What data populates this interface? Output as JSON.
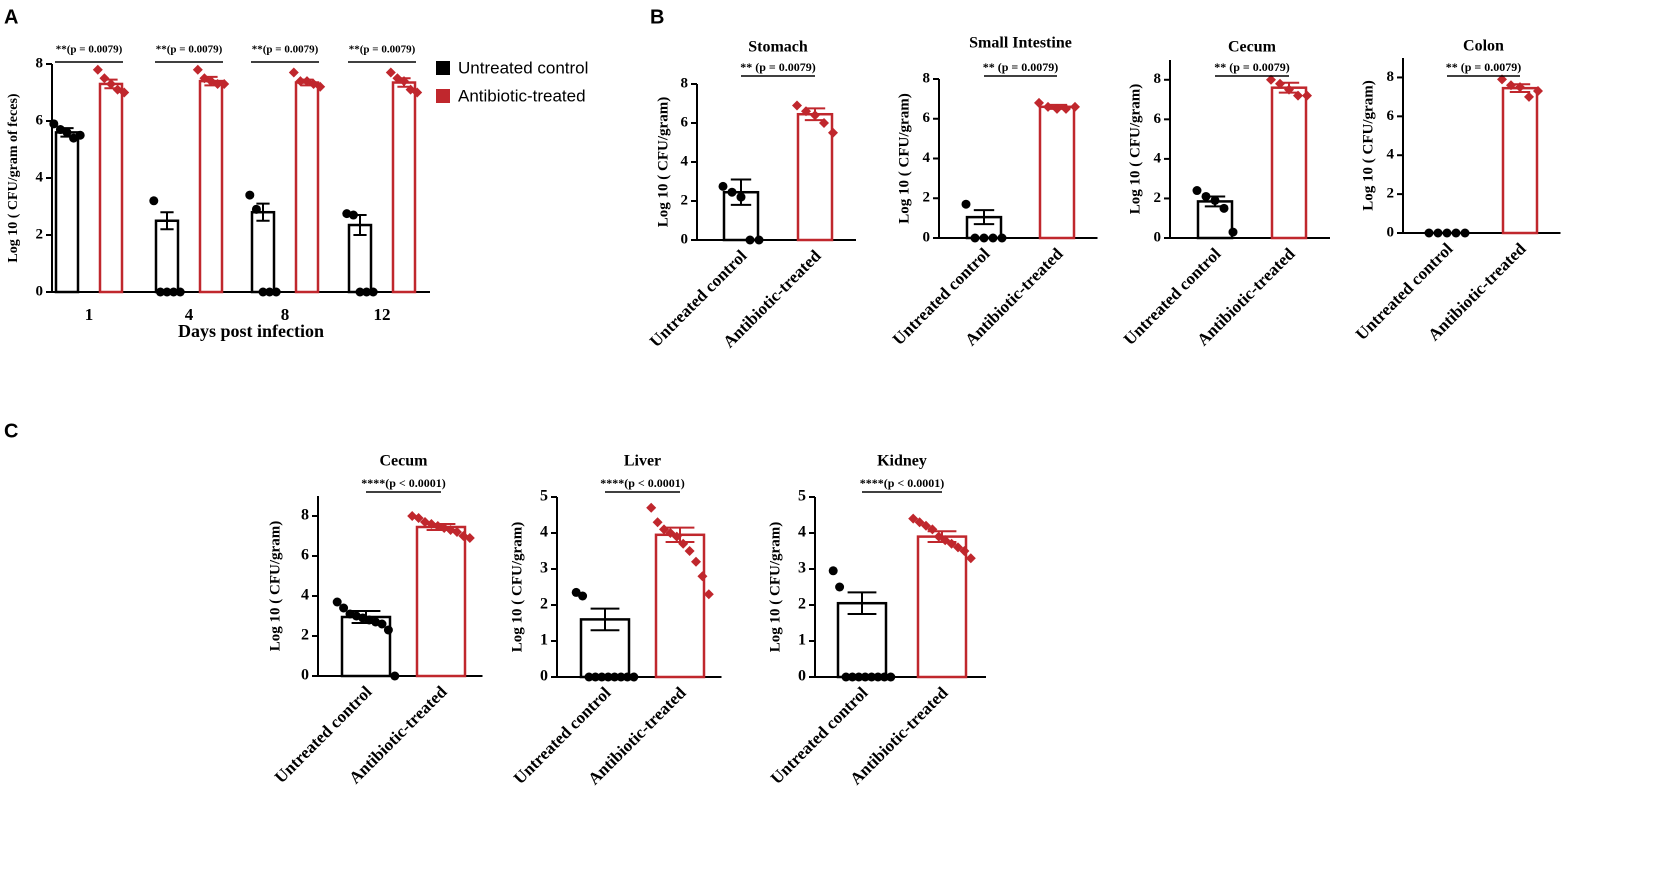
{
  "panel_labels": [
    "A",
    "B",
    "C"
  ],
  "chart_data": [
    {
      "type": "bar",
      "ylabel": "Log 10 ( CFU/gram of feces)",
      "xlabel": "Days post infection",
      "categories": [
        "1",
        "4",
        "8",
        "12"
      ],
      "ylim": [
        0,
        8
      ],
      "yticks": [
        0,
        2,
        4,
        6,
        8
      ],
      "annotations": [
        "**(p = 0.0079)",
        "**(p = 0.0079)",
        "**(p = 0.0079)",
        "**(p = 0.0079)"
      ],
      "series": [
        {
          "name": "Untreated control",
          "color": "#000000",
          "values": [
            5.6,
            2.5,
            2.8,
            2.35
          ],
          "errors": [
            0.15,
            0.3,
            0.3,
            0.35
          ],
          "points": [
            [
              5.9,
              5.7,
              5.6,
              5.4,
              5.5
            ],
            [
              3.2,
              0,
              0,
              0,
              0
            ],
            [
              3.4,
              2.9,
              0,
              0,
              0
            ],
            [
              2.75,
              2.7,
              0,
              0,
              0
            ]
          ]
        },
        {
          "name": "Antibiotic-treated",
          "color": "#c0272d",
          "values": [
            7.3,
            7.4,
            7.35,
            7.35
          ],
          "errors": [
            0.15,
            0.15,
            0.1,
            0.15
          ],
          "points": [
            [
              7.8,
              7.5,
              7.3,
              7.1,
              7.0
            ],
            [
              7.8,
              7.5,
              7.4,
              7.3,
              7.3
            ],
            [
              7.7,
              7.4,
              7.4,
              7.3,
              7.2
            ],
            [
              7.7,
              7.5,
              7.4,
              7.1,
              7.0
            ]
          ]
        }
      ]
    },
    {
      "type": "bar",
      "title": "Stomach",
      "ylabel": "Log 10 ( CFU/gram)",
      "annotation": "** (p = 0.0079)",
      "categories": [
        "Untreated control",
        "Antibiotic-treated"
      ],
      "colors": [
        "#000000",
        "#c0272d"
      ],
      "ylim": [
        0,
        8
      ],
      "yticks": [
        0,
        2,
        4,
        6,
        8
      ],
      "values": [
        2.45,
        6.45
      ],
      "errors": [
        0.65,
        0.3
      ],
      "points": [
        [
          2.75,
          2.45,
          2.2,
          0,
          0
        ],
        [
          6.9,
          6.6,
          6.4,
          6.0,
          5.5
        ]
      ]
    },
    {
      "type": "bar",
      "title": "Small Intestine",
      "ylabel": "Log 10 ( CFU/gram)",
      "annotation": "** (p = 0.0079)",
      "categories": [
        "Untreated control",
        "Antibiotic-treated"
      ],
      "colors": [
        "#000000",
        "#c0272d"
      ],
      "ylim": [
        0,
        8
      ],
      "yticks": [
        0,
        2,
        4,
        6,
        8
      ],
      "values": [
        1.05,
        6.6
      ],
      "errors": [
        0.35,
        0.1
      ],
      "points": [
        [
          1.7,
          0,
          0,
          0,
          0
        ],
        [
          6.8,
          6.6,
          6.5,
          6.5,
          6.6
        ]
      ]
    },
    {
      "type": "bar",
      "title": "Cecum",
      "ylabel": "Log 10 ( CFU/gram)",
      "annotation": "** (p = 0.0079)",
      "categories": [
        "Untreated control",
        "Antibiotic-treated"
      ],
      "colors": [
        "#000000",
        "#c0272d"
      ],
      "ylim": [
        0,
        9
      ],
      "yticks": [
        0,
        2,
        4,
        6,
        8
      ],
      "values": [
        1.85,
        7.6
      ],
      "errors": [
        0.25,
        0.25
      ],
      "points": [
        [
          2.4,
          2.1,
          1.9,
          1.5,
          0.3
        ],
        [
          8.0,
          7.8,
          7.5,
          7.2,
          7.2
        ]
      ]
    },
    {
      "type": "bar",
      "title": "Colon",
      "ylabel": "Log 10 ( CFU/gram)",
      "annotation": "** (p = 0.0079)",
      "categories": [
        "Untreated control",
        "Antibiotic-treated"
      ],
      "colors": [
        "#000000",
        "#c0272d"
      ],
      "ylim": [
        0,
        9
      ],
      "yticks": [
        0,
        2,
        4,
        6,
        8
      ],
      "values": [
        0,
        7.45
      ],
      "errors": [
        0,
        0.2
      ],
      "points": [
        [
          0,
          0,
          0,
          0,
          0
        ],
        [
          7.9,
          7.6,
          7.5,
          7.0,
          7.3
        ]
      ]
    },
    {
      "type": "bar",
      "title": "Cecum",
      "ylabel": "Log 10 ( CFU/gram)",
      "annotation": "****(p < 0.0001)",
      "categories": [
        "Untreated control",
        "Antibiotic-treated"
      ],
      "colors": [
        "#000000",
        "#c0272d"
      ],
      "ylim": [
        0,
        9
      ],
      "yticks": [
        0,
        2,
        4,
        6,
        8
      ],
      "values": [
        2.95,
        7.45
      ],
      "errors": [
        0.3,
        0.15
      ],
      "points": [
        [
          3.7,
          3.4,
          3.1,
          3.0,
          2.9,
          2.8,
          2.7,
          2.6,
          2.3,
          0
        ],
        [
          8.0,
          7.9,
          7.7,
          7.6,
          7.5,
          7.4,
          7.3,
          7.2,
          7.0,
          6.9
        ]
      ]
    },
    {
      "type": "bar",
      "title": "Liver",
      "ylabel": "Log 10 ( CFU/gram)",
      "annotation": "****(p < 0.0001)",
      "categories": [
        "Untreated control",
        "Antibiotic-treated"
      ],
      "colors": [
        "#000000",
        "#c0272d"
      ],
      "ylim": [
        0,
        5
      ],
      "yticks": [
        0,
        1,
        2,
        3,
        4,
        5
      ],
      "values": [
        1.6,
        3.95
      ],
      "errors": [
        0.3,
        0.2
      ],
      "points": [
        [
          2.35,
          2.25,
          0,
          0,
          0,
          0,
          0,
          0,
          0,
          0
        ],
        [
          4.7,
          4.3,
          4.1,
          4.0,
          3.9,
          3.7,
          3.5,
          3.2,
          2.8,
          2.3
        ]
      ]
    },
    {
      "type": "bar",
      "title": "Kidney",
      "ylabel": "Log 10 ( CFU/gram)",
      "annotation": "****(p < 0.0001)",
      "categories": [
        "Untreated control",
        "Antibiotic-treated"
      ],
      "colors": [
        "#000000",
        "#c0272d"
      ],
      "ylim": [
        0,
        5
      ],
      "yticks": [
        0,
        1,
        2,
        3,
        4,
        5
      ],
      "values": [
        2.05,
        3.9
      ],
      "errors": [
        0.3,
        0.15
      ],
      "points": [
        [
          2.95,
          2.5,
          0,
          0,
          0,
          0,
          0,
          0,
          0,
          0
        ],
        [
          4.4,
          4.3,
          4.2,
          4.1,
          3.9,
          3.8,
          3.7,
          3.6,
          3.5,
          3.3
        ]
      ]
    }
  ]
}
